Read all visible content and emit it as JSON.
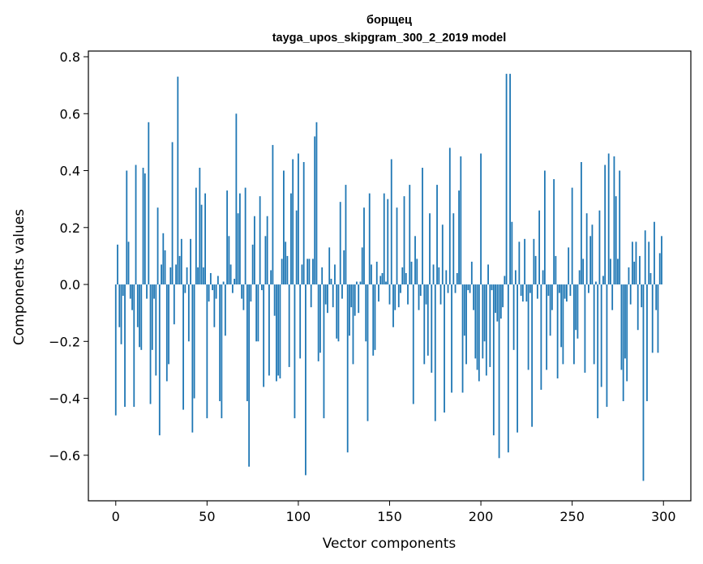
{
  "chart_data": {
    "type": "bar",
    "title": "борщец",
    "subtitle": "tayga_upos_skipgram_300_2_2019 model",
    "xlabel": "Vector components",
    "ylabel": "Components values",
    "xlim": [
      -15,
      315
    ],
    "ylim": [
      -0.76,
      0.82
    ],
    "xticks": [
      0,
      50,
      100,
      150,
      200,
      250,
      300
    ],
    "yticks": [
      -0.6,
      -0.4,
      -0.2,
      0.0,
      0.2,
      0.4,
      0.6,
      0.8
    ],
    "ytick_labels": [
      "−0.6",
      "−0.4",
      "−0.2",
      "0.0",
      "0.2",
      "0.4",
      "0.6",
      "0.8"
    ],
    "xtick_labels": [
      "0",
      "50",
      "100",
      "150",
      "200",
      "250",
      "300"
    ],
    "bar_color": "#1f77b4",
    "values": [
      -0.46,
      0.14,
      -0.15,
      -0.21,
      -0.04,
      -0.43,
      0.4,
      0.15,
      -0.05,
      -0.09,
      -0.43,
      0.42,
      -0.15,
      -0.22,
      -0.23,
      0.41,
      0.39,
      -0.05,
      0.57,
      -0.42,
      -0.23,
      -0.05,
      -0.32,
      0.27,
      -0.53,
      0.07,
      0.18,
      0.12,
      -0.34,
      -0.28,
      0.06,
      0.5,
      -0.14,
      0.07,
      0.73,
      0.1,
      0.16,
      -0.44,
      -0.03,
      0.06,
      -0.2,
      0.16,
      -0.52,
      -0.4,
      0.34,
      0.06,
      0.41,
      0.28,
      0.06,
      0.32,
      -0.47,
      -0.06,
      0.04,
      -0.02,
      -0.15,
      -0.05,
      0.03,
      -0.41,
      -0.47,
      0.01,
      -0.18,
      0.33,
      0.17,
      0.07,
      -0.03,
      0.02,
      0.6,
      0.25,
      0.32,
      -0.05,
      -0.09,
      0.34,
      -0.41,
      -0.64,
      -0.06,
      0.14,
      0.24,
      -0.2,
      -0.2,
      0.31,
      -0.02,
      -0.36,
      0.17,
      0.24,
      -0.32,
      0.05,
      0.49,
      -0.11,
      -0.34,
      -0.32,
      -0.33,
      0.09,
      0.4,
      0.15,
      0.1,
      -0.29,
      0.32,
      0.44,
      -0.47,
      0.26,
      0.46,
      -0.26,
      0.07,
      0.43,
      -0.67,
      0.09,
      0.09,
      -0.08,
      0.09,
      0.52,
      0.57,
      -0.27,
      -0.24,
      0.06,
      -0.47,
      -0.07,
      -0.1,
      0.13,
      0.02,
      -0.08,
      0.07,
      -0.19,
      -0.2,
      0.29,
      -0.05,
      0.12,
      0.35,
      -0.59,
      -0.18,
      -0.08,
      -0.28,
      -0.11,
      0.01,
      -0.1,
      0.01,
      0.13,
      0.27,
      -0.2,
      -0.48,
      0.32,
      0.07,
      -0.25,
      -0.23,
      0.08,
      -0.06,
      0.03,
      0.04,
      0.32,
      0.01,
      0.3,
      -0.07,
      0.44,
      -0.15,
      -0.09,
      0.27,
      -0.08,
      -0.03,
      0.06,
      0.31,
      0.04,
      -0.07,
      0.35,
      0.08,
      -0.42,
      0.17,
      0.09,
      -0.09,
      -0.04,
      0.41,
      -0.28,
      -0.07,
      -0.25,
      0.25,
      -0.31,
      0.07,
      -0.48,
      0.35,
      0.06,
      -0.07,
      0.21,
      -0.45,
      0.05,
      -0.03,
      0.48,
      -0.38,
      0.25,
      -0.03,
      0.04,
      0.33,
      0.45,
      -0.38,
      -0.18,
      -0.28,
      -0.02,
      -0.03,
      0.08,
      -0.09,
      -0.26,
      -0.3,
      -0.34,
      0.46,
      -0.26,
      -0.2,
      -0.32,
      0.07,
      -0.29,
      -0.02,
      -0.53,
      -0.1,
      -0.13,
      -0.61,
      -0.12,
      -0.08,
      0.03,
      0.74,
      -0.59,
      0.74,
      0.22,
      -0.23,
      0.05,
      -0.52,
      0.15,
      -0.04,
      -0.06,
      0.16,
      -0.06,
      -0.3,
      -0.03,
      -0.5,
      0.16,
      0.1,
      -0.05,
      0.26,
      -0.37,
      0.05,
      0.4,
      -0.3,
      -0.04,
      -0.18,
      -0.09,
      0.37,
      0.1,
      -0.33,
      -0.03,
      -0.22,
      -0.28,
      -0.05,
      -0.06,
      0.13,
      -0.04,
      0.34,
      -0.28,
      -0.16,
      -0.19,
      0.05,
      0.43,
      0.09,
      -0.31,
      0.25,
      -0.03,
      0.17,
      0.21,
      -0.28,
      0.01,
      -0.47,
      0.26,
      -0.36,
      0.03,
      0.42,
      -0.43,
      0.46,
      0.09,
      -0.09,
      0.45,
      0.31,
      0.09,
      0.4,
      -0.3,
      -0.41,
      -0.26,
      -0.34,
      0.06,
      -0.07,
      0.15,
      0.08,
      0.15,
      -0.16,
      0.1,
      -0.08,
      -0.69,
      0.19,
      -0.41,
      0.15,
      0.04,
      -0.24,
      0.22,
      -0.09,
      -0.24,
      0.11,
      0.17
    ]
  }
}
